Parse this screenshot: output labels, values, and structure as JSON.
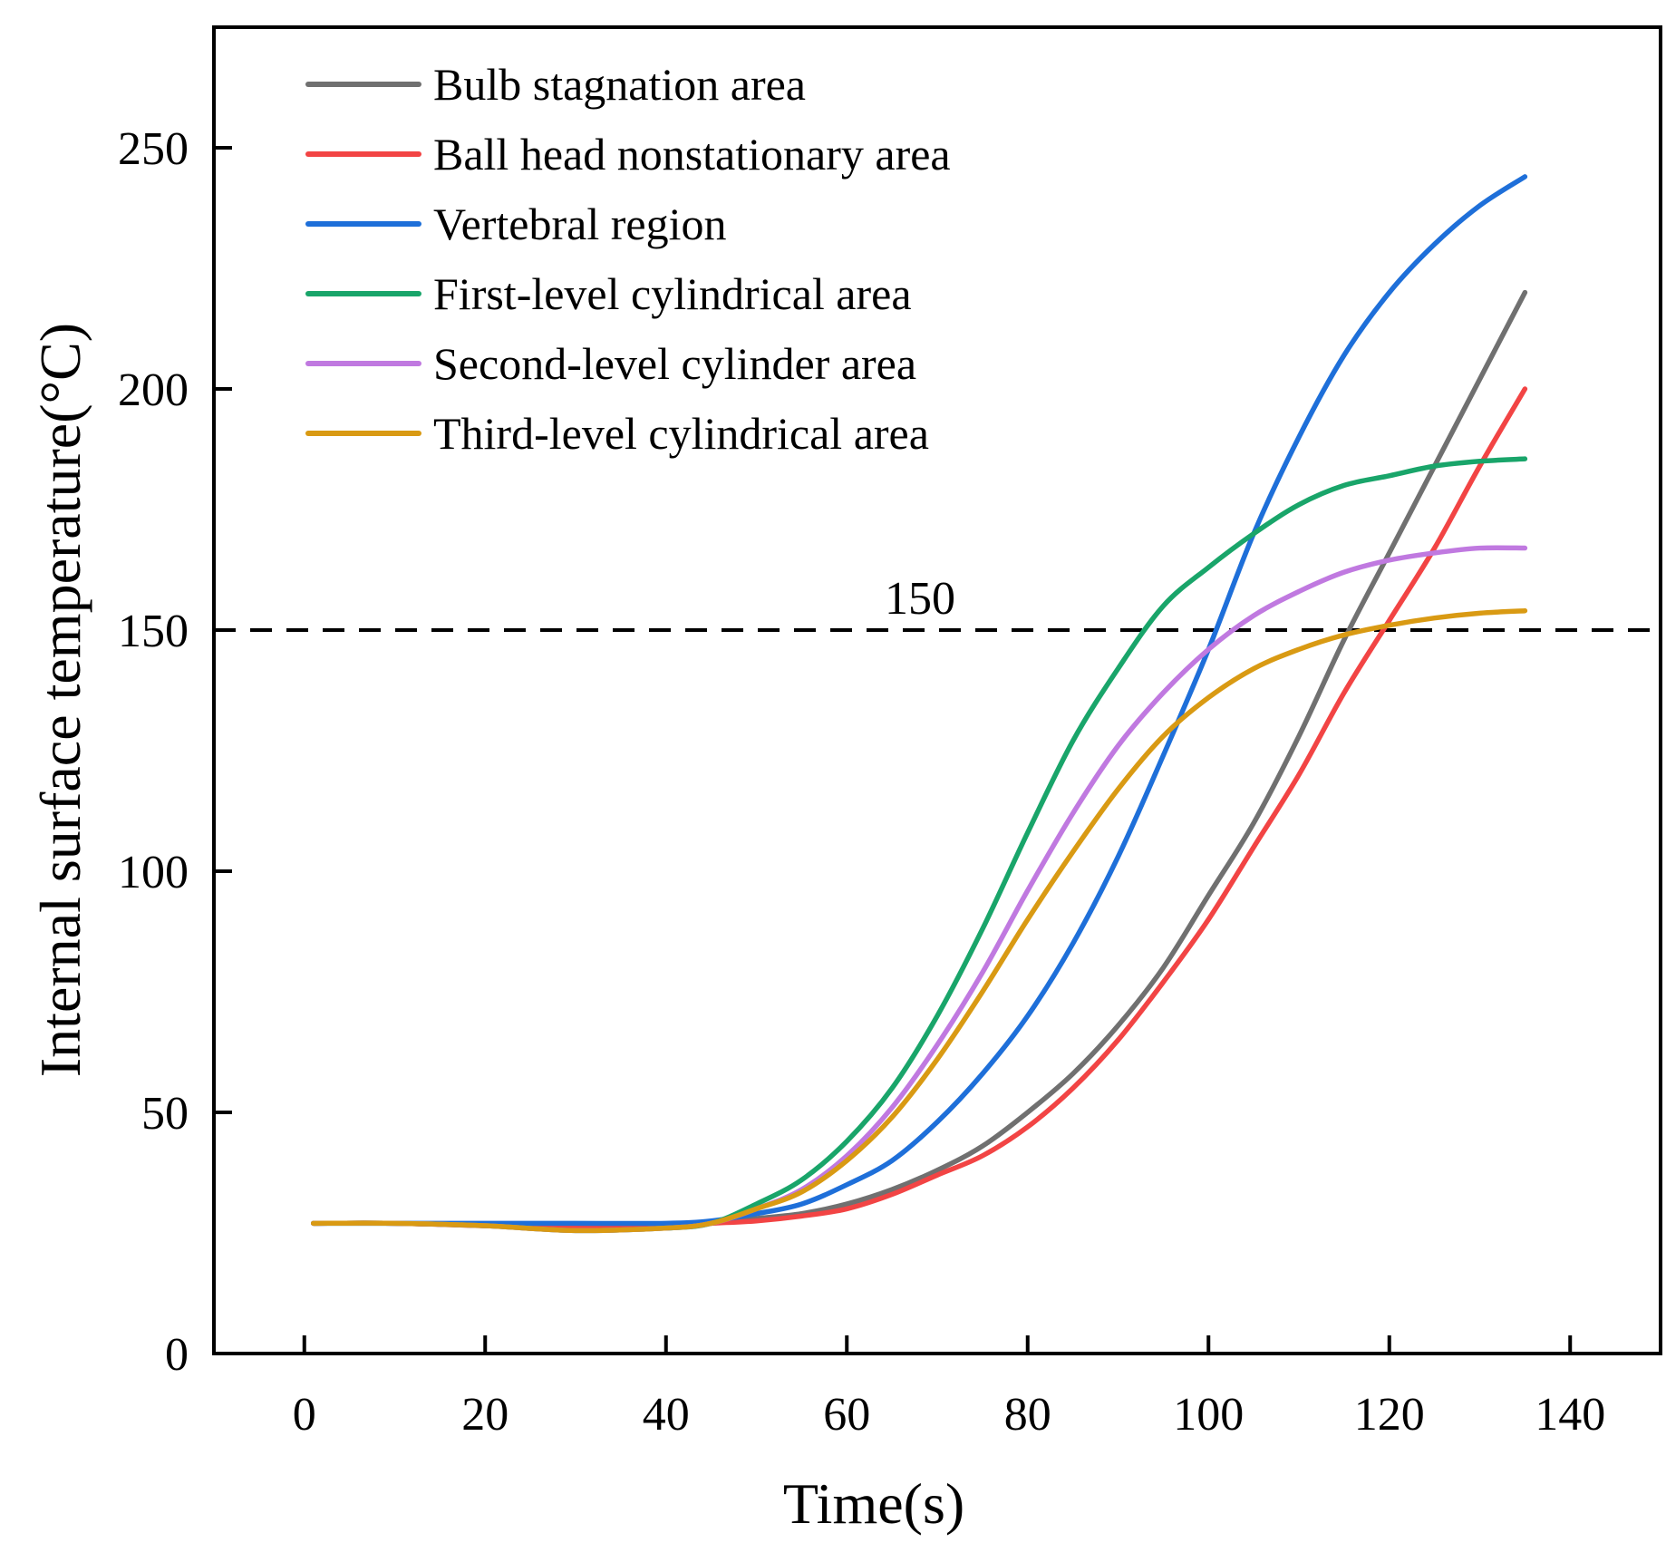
{
  "chart_data": {
    "type": "line",
    "title": "",
    "xlabel": "Time(s)",
    "ylabel": "Internal surface temperature(°C)",
    "xlim": [
      -10,
      150
    ],
    "ylim": [
      0,
      275
    ],
    "xticks": [
      0,
      20,
      40,
      60,
      80,
      100,
      120,
      140
    ],
    "yticks": [
      0,
      50,
      100,
      150,
      200,
      250
    ],
    "xtick_labels": [
      "0",
      "20",
      "40",
      "60",
      "80",
      "100",
      "120",
      "140"
    ],
    "ytick_labels": [
      "0",
      "50",
      "100",
      "150",
      "200",
      "250"
    ],
    "legend_position": "top-left",
    "reference_line": {
      "y": 150,
      "style": "dashed",
      "color": "#000000",
      "label": "150"
    },
    "x": [
      1,
      10,
      20,
      30,
      40,
      45,
      50,
      55,
      60,
      65,
      70,
      75,
      80,
      85,
      90,
      95,
      100,
      105,
      110,
      115,
      120,
      125,
      130,
      135
    ],
    "series": [
      {
        "name": "Bulb stagnation area",
        "color": "#707070",
        "values": [
          27,
          27,
          26.5,
          26,
          26.5,
          27,
          28,
          29,
          31,
          34,
          38,
          43,
          50,
          58,
          68,
          80,
          95,
          110,
          128,
          148,
          166,
          184,
          202,
          220
        ]
      },
      {
        "name": "Ball head nonstationary area",
        "color": "#f24444",
        "values": [
          27,
          27,
          26.5,
          26,
          26.5,
          27,
          27.5,
          28.5,
          30,
          33,
          37,
          41,
          47,
          55,
          65,
          77,
          90,
          105,
          120,
          137,
          152,
          167,
          184,
          200
        ]
      },
      {
        "name": "Vertebral region",
        "color": "#1e6fd9",
        "values": [
          27,
          27,
          27,
          27,
          27,
          27.5,
          29,
          31,
          35,
          40,
          48,
          58,
          70,
          85,
          103,
          124,
          146,
          170,
          190,
          207,
          220,
          230,
          238,
          244
        ]
      },
      {
        "name": "First-level cylindrical area",
        "color": "#19a56a",
        "values": [
          27,
          27,
          26.5,
          25.5,
          26,
          27,
          31,
          36,
          44,
          55,
          70,
          88,
          108,
          127,
          142,
          155,
          163,
          170,
          176,
          180,
          182,
          184,
          185,
          185.5
        ]
      },
      {
        "name": "Second-level cylinder area",
        "color": "#c079e0",
        "values": [
          27,
          27,
          26.5,
          25.5,
          26,
          27,
          30,
          34,
          41,
          51,
          64,
          79,
          96,
          112,
          126,
          137,
          146,
          153,
          158,
          162,
          164.5,
          166,
          167,
          167
        ]
      },
      {
        "name": "Third-level cylindrical area",
        "color": "#d99a13",
        "values": [
          27,
          27,
          26.5,
          25.5,
          26,
          27,
          30,
          33.5,
          40,
          49,
          61,
          75,
          90,
          104,
          117,
          128,
          136,
          142,
          146,
          149,
          151,
          152.5,
          153.5,
          154
        ]
      }
    ]
  }
}
